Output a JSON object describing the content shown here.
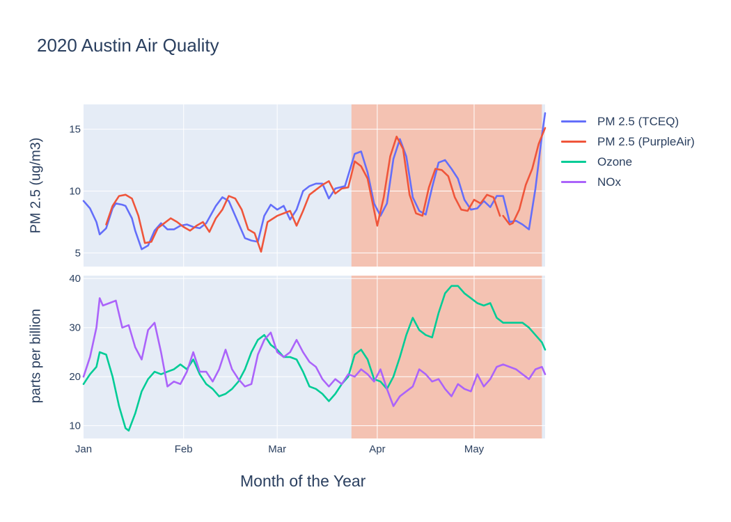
{
  "title": "2020 Austin Air Quality",
  "xlabel": "Month of the Year",
  "chart_data": {
    "type": "line",
    "title": "2020 Austin Air Quality",
    "xlabel": "Month of the Year",
    "x_ticks": [
      "Jan",
      "Feb",
      "Mar",
      "Apr",
      "May"
    ],
    "x_tick_dates": [
      "2020-01-01",
      "2020-02-01",
      "2020-03-01",
      "2020-04-01",
      "2020-05-01"
    ],
    "xlim": [
      "2020-01-01",
      "2020-05-23"
    ],
    "shaded_period": {
      "start": "2020-03-24",
      "end": "2020-05-22",
      "color": "#f4c2b2"
    },
    "panels": [
      {
        "name": "top",
        "ylabel": "PM 2.5 (ug/m3)",
        "ylim": [
          3.9,
          17.0
        ],
        "y_ticks": [
          5,
          10,
          15
        ],
        "series": [
          {
            "name": "PM 2.5 (TCEQ)",
            "color": "#636efa",
            "x": [
              "2020-01-01",
              "2020-01-03",
              "2020-01-05",
              "2020-01-06",
              "2020-01-08",
              "2020-01-10",
              "2020-01-11",
              "2020-01-13",
              "2020-01-14",
              "2020-01-16",
              "2020-01-17",
              "2020-01-19",
              "2020-01-21",
              "2020-01-23",
              "2020-01-25",
              "2020-01-27",
              "2020-01-29",
              "2020-01-31",
              "2020-02-02",
              "2020-02-04",
              "2020-02-06",
              "2020-02-08",
              "2020-02-11",
              "2020-02-13",
              "2020-02-15",
              "2020-02-17",
              "2020-02-20",
              "2020-02-22",
              "2020-02-24",
              "2020-02-26",
              "2020-02-28",
              "2020-03-01",
              "2020-03-03",
              "2020-03-05",
              "2020-03-07",
              "2020-03-09",
              "2020-03-11",
              "2020-03-13",
              "2020-03-15",
              "2020-03-17",
              "2020-03-19",
              "2020-03-22",
              "2020-03-25",
              "2020-03-27",
              "2020-03-29",
              "2020-03-31",
              "2020-04-02",
              "2020-04-04",
              "2020-04-06",
              "2020-04-08",
              "2020-04-10",
              "2020-04-12",
              "2020-04-14",
              "2020-04-16",
              "2020-04-18",
              "2020-04-20",
              "2020-04-22",
              "2020-04-24",
              "2020-04-26",
              "2020-04-28",
              "2020-04-30",
              "2020-05-02",
              "2020-05-04",
              "2020-05-06",
              "2020-05-08",
              "2020-05-10",
              "2020-05-12",
              "2020-05-14",
              "2020-05-16",
              "2020-05-18",
              "2020-05-20",
              "2020-05-22",
              "2020-05-23"
            ],
            "values": [
              9.2,
              8.6,
              7.5,
              6.5,
              7.0,
              8.6,
              9.0,
              8.9,
              8.8,
              7.8,
              6.8,
              5.3,
              5.6,
              6.8,
              7.4,
              6.9,
              6.9,
              7.2,
              7.3,
              7.1,
              7.0,
              7.4,
              8.8,
              9.5,
              9.2,
              8.0,
              6.2,
              6.0,
              5.9,
              8.0,
              8.9,
              8.5,
              8.8,
              7.7,
              8.5,
              10.0,
              10.4,
              10.6,
              10.6,
              9.4,
              10.2,
              10.4,
              13.0,
              13.2,
              11.5,
              9.0,
              8.0,
              9.0,
              12.6,
              14.2,
              12.8,
              9.5,
              8.4,
              8.1,
              10.3,
              12.3,
              12.5,
              11.8,
              11.0,
              9.3,
              8.5,
              8.6,
              9.2,
              8.7,
              9.6,
              9.6,
              7.5,
              7.6,
              7.3,
              6.9,
              10.2,
              14.5,
              16.3
            ]
          },
          {
            "name": "PM 2.5 (PurpleAir)",
            "color": "#ef553b",
            "x": [
              "2020-01-08",
              "2020-01-10",
              "2020-01-12",
              "2020-01-14",
              "2020-01-16",
              "2020-01-18",
              "2020-01-20",
              "2020-01-22",
              "2020-01-24",
              "2020-01-26",
              "2020-01-28",
              "2020-01-30",
              "2020-02-01",
              "2020-02-03",
              "2020-02-05",
              "2020-02-07",
              "2020-02-09",
              "2020-02-11",
              "2020-02-13",
              "2020-02-15",
              "2020-02-17",
              "2020-02-19",
              "2020-02-21",
              "2020-02-23",
              "2020-02-25",
              "2020-02-27",
              "2020-03-01",
              "2020-03-03",
              "2020-03-05",
              "2020-03-07",
              "2020-03-09",
              "2020-03-11",
              "2020-03-13",
              "2020-03-15",
              "2020-03-17",
              "2020-03-19",
              "2020-03-21",
              "2020-03-23",
              "2020-03-25",
              "2020-03-27",
              "2020-03-29",
              "2020-04-01",
              "2020-04-03",
              "2020-04-05",
              "2020-04-07",
              "2020-04-09",
              "2020-04-11",
              "2020-04-13",
              "2020-04-15",
              "2020-04-17",
              "2020-04-19",
              "2020-04-21",
              "2020-04-23",
              "2020-04-25",
              "2020-04-27",
              "2020-04-29",
              "2020-05-01",
              "2020-05-03",
              "2020-05-05",
              "2020-05-07",
              "2020-05-09"
            ],
            "values": [
              7.3,
              8.8,
              9.6,
              9.7,
              9.4,
              8.0,
              5.8,
              5.9,
              7.0,
              7.4,
              7.8,
              7.5,
              7.1,
              6.8,
              7.2,
              7.5,
              6.7,
              7.8,
              8.5,
              9.6,
              9.4,
              8.5,
              6.9,
              6.6,
              5.1,
              7.5,
              8.0,
              8.2,
              8.4,
              7.2,
              8.4,
              9.7,
              10.1,
              10.5,
              10.8,
              9.8,
              10.2,
              10.3,
              12.4,
              12.0,
              11.0,
              7.2,
              9.5,
              12.8,
              14.4,
              13.4,
              9.7,
              8.2,
              8.0,
              10.3,
              11.8,
              11.7,
              11.2,
              9.5,
              8.5,
              8.4,
              9.3,
              9.0,
              9.7,
              9.5,
              8.0
            ],
            "x2": [
              "2020-05-10",
              "2020-05-12",
              "2020-05-13",
              "2020-05-15",
              "2020-05-17",
              "2020-05-19",
              "2020-05-21",
              "2020-05-23"
            ],
            "values2": [
              8.0,
              7.3,
              7.4,
              8.5,
              10.5,
              11.8,
              13.8,
              15.1
            ]
          }
        ]
      },
      {
        "name": "bottom",
        "ylabel": "parts per billion",
        "ylim": [
          7.4,
          40.6
        ],
        "y_ticks": [
          10,
          20,
          30,
          40
        ],
        "series": [
          {
            "name": "Ozone",
            "color": "#00cc96",
            "x": [
              "2020-01-01",
              "2020-01-03",
              "2020-01-05",
              "2020-01-06",
              "2020-01-08",
              "2020-01-10",
              "2020-01-12",
              "2020-01-14",
              "2020-01-15",
              "2020-01-17",
              "2020-01-19",
              "2020-01-21",
              "2020-01-23",
              "2020-01-25",
              "2020-01-27",
              "2020-01-29",
              "2020-01-31",
              "2020-02-02",
              "2020-02-04",
              "2020-02-06",
              "2020-02-08",
              "2020-02-10",
              "2020-02-12",
              "2020-02-14",
              "2020-02-16",
              "2020-02-18",
              "2020-02-20",
              "2020-02-22",
              "2020-02-24",
              "2020-02-26",
              "2020-02-28",
              "2020-03-01",
              "2020-03-03",
              "2020-03-05",
              "2020-03-07",
              "2020-03-09",
              "2020-03-11",
              "2020-03-13",
              "2020-03-15",
              "2020-03-17",
              "2020-03-19",
              "2020-03-21",
              "2020-03-23",
              "2020-03-25",
              "2020-03-27",
              "2020-03-29",
              "2020-03-31",
              "2020-04-02",
              "2020-04-04",
              "2020-04-06",
              "2020-04-08",
              "2020-04-10",
              "2020-04-12",
              "2020-04-14",
              "2020-04-16",
              "2020-04-18",
              "2020-04-20",
              "2020-04-22",
              "2020-04-24",
              "2020-04-26",
              "2020-04-28",
              "2020-04-30",
              "2020-05-02",
              "2020-05-04",
              "2020-05-06",
              "2020-05-08",
              "2020-05-10",
              "2020-05-12",
              "2020-05-14",
              "2020-05-16",
              "2020-05-18",
              "2020-05-20",
              "2020-05-22",
              "2020-05-23"
            ],
            "values": [
              18.5,
              20.5,
              22.0,
              25.0,
              24.5,
              20.0,
              14.0,
              9.5,
              9.0,
              12.5,
              17.0,
              19.5,
              21.0,
              20.5,
              21.0,
              21.5,
              22.5,
              21.5,
              23.5,
              20.5,
              18.5,
              17.5,
              16.0,
              16.5,
              17.5,
              19.0,
              21.5,
              25.0,
              27.5,
              28.5,
              26.5,
              25.5,
              24.0,
              24.0,
              23.5,
              21.0,
              18.0,
              17.5,
              16.5,
              15.0,
              16.5,
              18.5,
              20.0,
              24.5,
              25.5,
              23.5,
              19.5,
              19.0,
              17.5,
              20.0,
              24.0,
              28.5,
              32.0,
              29.5,
              28.5,
              28.0,
              33.0,
              37.0,
              38.5,
              38.5,
              37.0,
              36.0,
              35.0,
              34.5,
              35.0,
              32.0,
              31.0,
              31.0,
              31.0,
              31.0,
              30.0,
              28.5,
              27.0,
              25.5
            ]
          },
          {
            "name": "NOx",
            "color": "#ab63fa",
            "x": [
              "2020-01-01",
              "2020-01-03",
              "2020-01-05",
              "2020-01-06",
              "2020-01-07",
              "2020-01-09",
              "2020-01-11",
              "2020-01-13",
              "2020-01-15",
              "2020-01-17",
              "2020-01-19",
              "2020-01-21",
              "2020-01-23",
              "2020-01-25",
              "2020-01-27",
              "2020-01-29",
              "2020-01-31",
              "2020-02-02",
              "2020-02-04",
              "2020-02-06",
              "2020-02-08",
              "2020-02-10",
              "2020-02-12",
              "2020-02-14",
              "2020-02-16",
              "2020-02-18",
              "2020-02-20",
              "2020-02-22",
              "2020-02-24",
              "2020-02-26",
              "2020-02-28",
              "2020-03-01",
              "2020-03-03",
              "2020-03-05",
              "2020-03-07",
              "2020-03-09",
              "2020-03-11",
              "2020-03-13",
              "2020-03-15",
              "2020-03-17",
              "2020-03-19",
              "2020-03-21",
              "2020-03-23",
              "2020-03-25",
              "2020-03-27",
              "2020-03-29",
              "2020-03-31",
              "2020-04-02",
              "2020-04-04",
              "2020-04-06",
              "2020-04-08",
              "2020-04-10",
              "2020-04-12",
              "2020-04-14",
              "2020-04-16",
              "2020-04-18",
              "2020-04-20",
              "2020-04-22",
              "2020-04-24",
              "2020-04-26",
              "2020-04-28",
              "2020-04-30",
              "2020-05-02",
              "2020-05-04",
              "2020-05-06",
              "2020-05-08",
              "2020-05-10",
              "2020-05-12",
              "2020-05-14",
              "2020-05-16",
              "2020-05-18",
              "2020-05-20",
              "2020-05-22",
              "2020-05-23"
            ],
            "values": [
              20.0,
              24.0,
              30.0,
              36.0,
              34.5,
              35.0,
              35.5,
              30.0,
              30.5,
              26.0,
              23.5,
              29.5,
              31.0,
              25.0,
              18.0,
              19.0,
              18.5,
              21.0,
              25.0,
              21.0,
              21.0,
              19.0,
              21.5,
              25.5,
              21.5,
              19.5,
              18.0,
              18.5,
              24.5,
              27.5,
              29.0,
              25.0,
              24.0,
              25.0,
              27.5,
              25.0,
              23.0,
              22.0,
              19.5,
              18.0,
              19.5,
              18.5,
              20.5,
              20.0,
              21.5,
              20.5,
              19.0,
              21.5,
              17.5,
              14.0,
              16.0,
              17.0,
              18.0,
              21.5,
              20.5,
              19.0,
              19.5,
              17.5,
              16.0,
              18.5,
              17.5,
              17.0,
              20.5,
              18.0,
              19.5,
              22.0,
              22.5,
              22.0,
              21.5,
              20.5,
              19.5,
              21.5,
              22.0,
              20.5
            ]
          }
        ]
      }
    ],
    "legend": [
      "PM 2.5 (TCEQ)",
      "PM 2.5 (PurpleAir)",
      "Ozone",
      "NOx"
    ],
    "legend_position": "right",
    "grid": true
  }
}
